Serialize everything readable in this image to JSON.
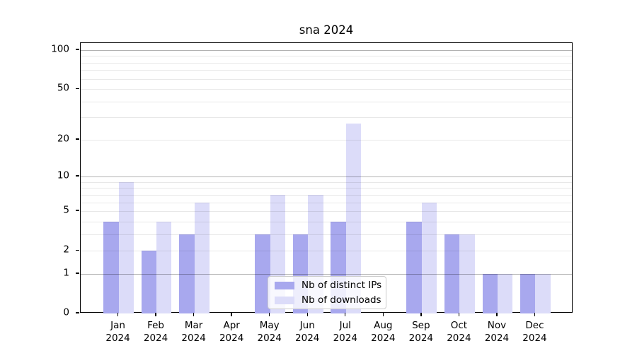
{
  "chart_data": {
    "type": "bar",
    "title": "sna 2024",
    "categories": [
      "Jan",
      "Feb",
      "Mar",
      "Apr",
      "May",
      "Jun",
      "Jul",
      "Aug",
      "Sep",
      "Oct",
      "Nov",
      "Dec"
    ],
    "year": "2024",
    "series": [
      {
        "name": "Nb of distinct IPs",
        "color": "#a8a8ee",
        "values": [
          4,
          2,
          3,
          0,
          3,
          3,
          4,
          0,
          4,
          3,
          1,
          1
        ]
      },
      {
        "name": "Nb of downloads",
        "color": "#dcdcf9",
        "values": [
          9,
          4,
          6,
          0,
          7,
          7,
          27,
          0,
          6,
          3,
          1,
          1
        ]
      }
    ],
    "xlabel": "",
    "ylabel": "",
    "yscale": "log1p",
    "ylim": [
      0,
      113
    ],
    "yticks": [
      0,
      1,
      2,
      5,
      10,
      20,
      50,
      100
    ],
    "minor_gridlines": [
      2,
      3,
      4,
      5,
      6,
      7,
      8,
      9,
      20,
      30,
      40,
      50,
      60,
      70,
      80,
      90
    ],
    "major_gridlines": [
      1,
      10,
      100
    ],
    "grid": true,
    "legend_position": "lower center",
    "colors": {
      "axis": "#000000",
      "major_grid": "#b3b3b3",
      "minor_grid": "#e8e8e8",
      "legend_border": "#cccccc"
    }
  }
}
